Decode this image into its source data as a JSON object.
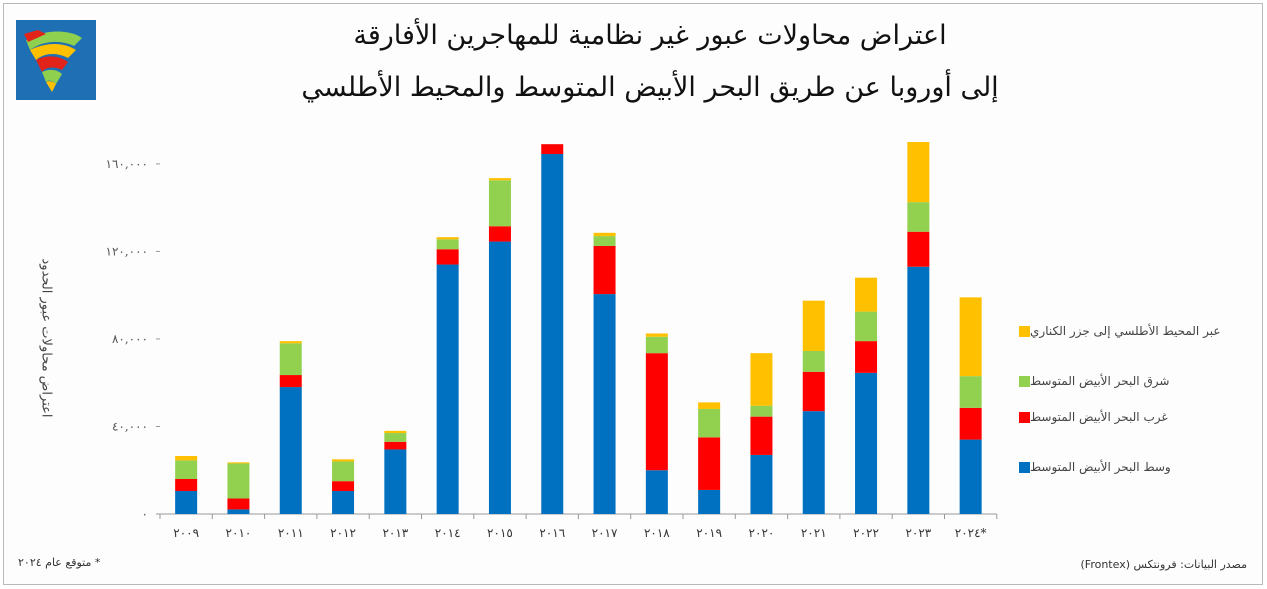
{
  "title_line1": "اعتراض محاولات عبور غير نظامية للمهاجرين الأفارقة",
  "title_line2": "إلى أوروبا عن طريق البحر الأبيض المتوسط والمحيط الأطلسي",
  "footnote": "* متوقع عام ٢٠٢٤",
  "source": "مصدر البيانات: فرونتكس (Frontex)",
  "logo": {
    "icon": "africa-map-logo",
    "background": "#1f6fb5"
  },
  "chart_data": {
    "type": "bar",
    "stacked": true,
    "title": "",
    "xlabel": "",
    "ylabel": "اعتراض محاولات عبور الحدود",
    "ylim": [
      0,
      170000
    ],
    "yticks": [
      0,
      40000,
      80000,
      120000,
      160000
    ],
    "ytick_labels": [
      "٠",
      "٤٠,٠٠٠",
      "٨٠,٠٠٠",
      "١٢٠,٠٠٠",
      "١٦٠,٠٠٠"
    ],
    "grid": false,
    "legend_position": "right",
    "categories": [
      "٢٠٠٩",
      "٢٠١٠",
      "٢٠١١",
      "٢٠١٢",
      "٢٠١٣",
      "٢٠١٤",
      "٢٠١٥",
      "٢٠١٦",
      "٢٠١٧",
      "٢٠١٨",
      "٢٠١٩",
      "٢٠٢٠",
      "٢٠٢١",
      "٢٠٢٢",
      "٢٠٢٣",
      "٢٠٢٤*"
    ],
    "series": [
      {
        "name": "وسط البحر الأبيض المتوسط",
        "color": "#0070c0",
        "values": [
          10500,
          2100,
          58000,
          10500,
          29500,
          114000,
          124500,
          164500,
          100500,
          20000,
          11000,
          27000,
          47000,
          64500,
          113000,
          34000
        ]
      },
      {
        "name": "غرب البحر الأبيض المتوسط",
        "color": "#ff0000",
        "values": [
          5500,
          5000,
          5500,
          4500,
          3500,
          7000,
          7000,
          4500,
          22000,
          53500,
          24000,
          17500,
          18000,
          14500,
          16000,
          14500
        ]
      },
      {
        "name": "شرق البحر الأبيض المتوسط",
        "color": "#92d050",
        "values": [
          8500,
          16000,
          14500,
          9000,
          4000,
          4500,
          21000,
          0,
          4500,
          7500,
          13000,
          5000,
          9500,
          13500,
          13500,
          14500
        ]
      },
      {
        "name": "عبر المحيط الأطلسي إلى جزر الكناري",
        "color": "#ffc000",
        "values": [
          2000,
          500,
          1000,
          1000,
          1000,
          1000,
          1000,
          0,
          1500,
          1500,
          3000,
          24000,
          23000,
          15500,
          27500,
          36000
        ]
      }
    ]
  }
}
